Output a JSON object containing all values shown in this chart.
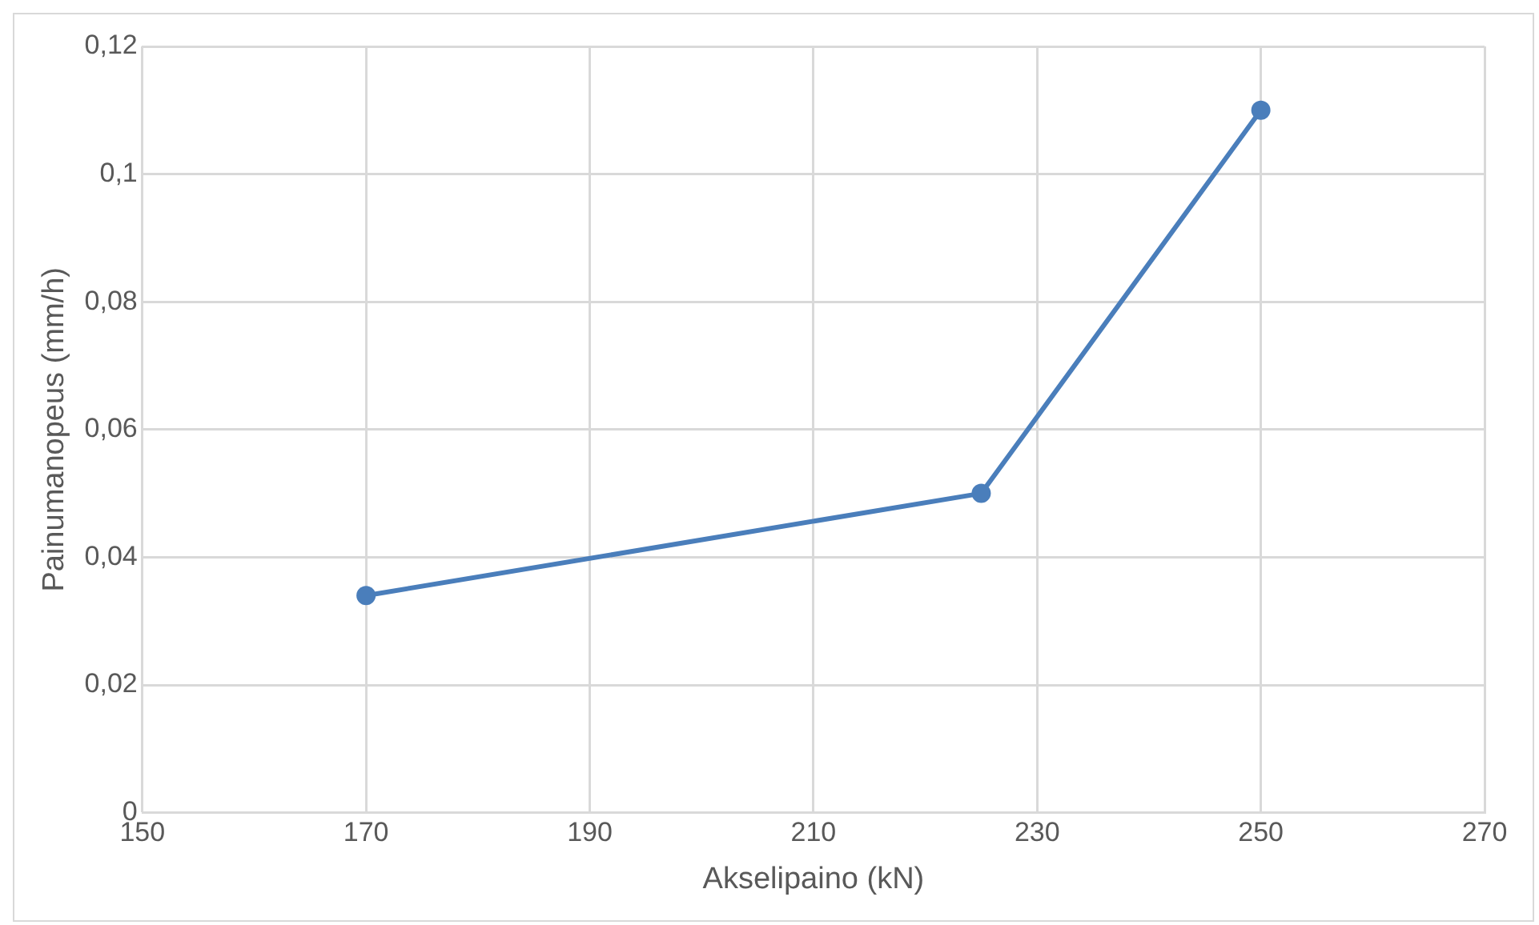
{
  "chart_data": {
    "type": "line",
    "xlabel": "Akselipaino (kN)",
    "ylabel": "Painumanopeus (mm/h)",
    "x": [
      170,
      225,
      250
    ],
    "series": [
      {
        "color": "#4a7ebb",
        "values": [
          0.034,
          0.05,
          0.11
        ]
      }
    ],
    "xlim": [
      150,
      270
    ],
    "xticks": [
      150,
      170,
      190,
      210,
      230,
      250,
      270
    ],
    "ylim": [
      0,
      0.12
    ],
    "yticks": [
      {
        "value": 0,
        "label": "0"
      },
      {
        "value": 0.02,
        "label": "0,02"
      },
      {
        "value": 0.04,
        "label": "0,04"
      },
      {
        "value": 0.06,
        "label": "0,06"
      },
      {
        "value": 0.08,
        "label": "0,08"
      },
      {
        "value": 0.1,
        "label": "0,1"
      },
      {
        "value": 0.12,
        "label": "0,12"
      }
    ],
    "grid": true,
    "legend": false,
    "marker": "circle",
    "line_style": "solid"
  }
}
